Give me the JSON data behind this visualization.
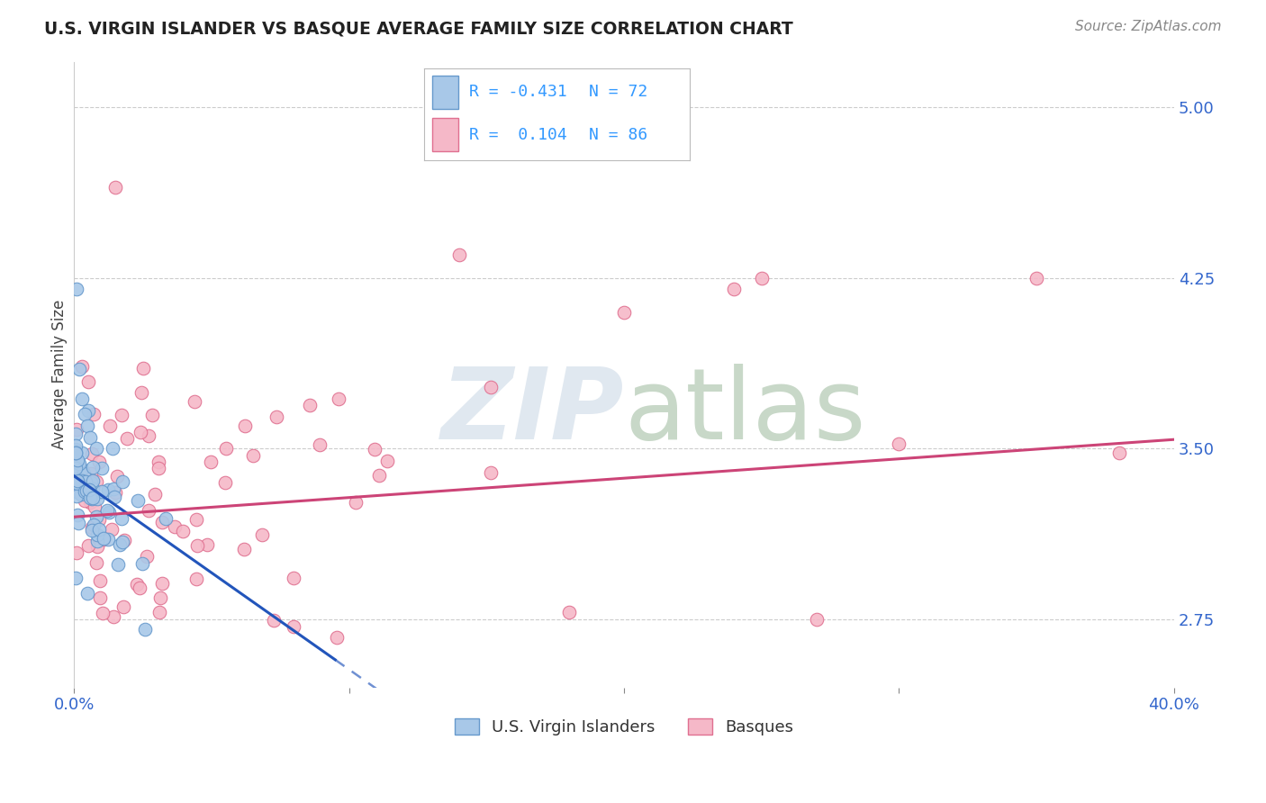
{
  "title": "U.S. VIRGIN ISLANDER VS BASQUE AVERAGE FAMILY SIZE CORRELATION CHART",
  "source": "Source: ZipAtlas.com",
  "ylabel": "Average Family Size",
  "xlim": [
    0.0,
    0.4
  ],
  "ylim": [
    2.45,
    5.2
  ],
  "xticks": [
    0.0,
    0.1,
    0.2,
    0.3,
    0.4
  ],
  "xtick_labels": [
    "0.0%",
    "",
    "",
    "",
    "40.0%"
  ],
  "yticks_right": [
    2.75,
    3.5,
    4.25,
    5.0
  ],
  "ytick_labels_right": [
    "2.75",
    "3.50",
    "4.25",
    "5.00"
  ],
  "series1_name": "U.S. Virgin Islanders",
  "series1_R": "-0.431",
  "series1_N": "72",
  "series1_color": "#a8c8e8",
  "series1_edge_color": "#6699cc",
  "series2_name": "Basques",
  "series2_R": "0.104",
  "series2_N": "86",
  "series2_color": "#f5b8c8",
  "series2_edge_color": "#e07090",
  "reg_blue": "#2255bb",
  "reg_pink": "#cc4477",
  "legend_text_color": "#3399ff",
  "watermark_color": "#e0e8f0",
  "background_color": "#ffffff",
  "blue_reg_intercept": 3.38,
  "blue_reg_slope": -8.5,
  "pink_reg_intercept": 3.2,
  "pink_reg_slope": 0.85
}
